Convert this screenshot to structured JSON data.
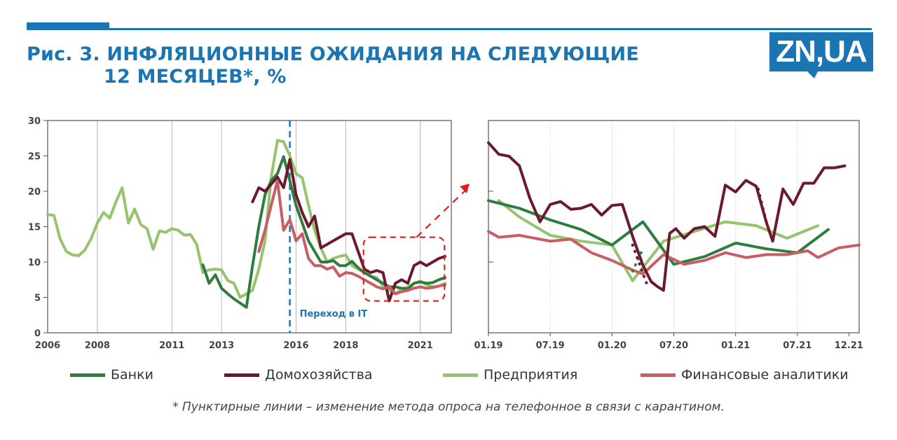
{
  "title_line1": "Рис. 3. ИНФЛЯЦИОННЫЕ ОЖИДАНИЯ НА СЛЕДУЮЩИЕ",
  "title_line2": "12 МЕСЯЦЕВ*, %",
  "logo_text": "ZN,UA",
  "footnote": "* Пунктирные линии – изменение метода опроса на телефонное в связи с карантином.",
  "colors": {
    "brand": "#1b75b3",
    "banks": "#2e7d3f",
    "households": "#6b1a2e",
    "enterprises": "#96c46e",
    "analysts": "#c85d66",
    "zoom_box": "#e01e1e"
  },
  "legend": [
    {
      "name": "Банки",
      "color": "#2e7d3f"
    },
    {
      "name": "Домохозяйства",
      "color": "#6b1a2e"
    },
    {
      "name": "Предприятия",
      "color": "#96c46e"
    },
    {
      "name": "Финансовые аналитики",
      "color": "#c85d66"
    }
  ],
  "chart_data": [
    {
      "type": "line",
      "title": "",
      "x_tick_labels": [
        "2006",
        "2008",
        "2011",
        "2013",
        "2016",
        "2018",
        "2021"
      ],
      "x_ticks": [
        2006.0,
        2008.0,
        2011.0,
        2013.0,
        2016.0,
        2018.0,
        2021.0
      ],
      "xlim": [
        2006.0,
        2022.25
      ],
      "y_tick_labels": [
        "0",
        "5",
        "10",
        "15",
        "20",
        "25",
        "30"
      ],
      "ylim": [
        0,
        30
      ],
      "grid": "vertical",
      "annotation": {
        "label": "Переход в IT",
        "x": 2015.75
      },
      "zoom_region": {
        "x": [
          2019.0,
          2021.92
        ],
        "y": [
          4.5,
          13.5
        ]
      },
      "series": [
        {
          "name": "Банки",
          "x": [
            2012.25,
            2012.5,
            2012.75,
            2013.0,
            2013.25,
            2013.5,
            2013.75,
            2014.0,
            2014.25,
            2014.5,
            2014.75,
            2015.0,
            2015.25,
            2015.5,
            2015.75,
            2016.0,
            2016.25,
            2016.5,
            2016.75,
            2017.0,
            2017.25,
            2017.5,
            2017.75,
            2018.0,
            2018.25,
            2018.5,
            2018.75,
            2019.0,
            2019.25,
            2019.5,
            2019.75,
            2020.0,
            2020.25,
            2020.5,
            2020.75,
            2021.0,
            2021.25,
            2021.5,
            2021.75,
            2022.0
          ],
          "values": [
            9.6,
            7.0,
            8.2,
            6.3,
            5.5,
            4.8,
            4.2,
            3.6,
            9.5,
            15.0,
            19.5,
            21.5,
            22.5,
            24.9,
            21.5,
            18.0,
            15.5,
            13.0,
            11.5,
            10.0,
            10.0,
            10.2,
            9.5,
            9.5,
            10.1,
            9.2,
            8.5,
            8.0,
            7.5,
            7.0,
            6.5,
            6.5,
            6.3,
            6.2,
            7.0,
            7.2,
            7.0,
            7.1,
            7.5,
            7.8
          ]
        },
        {
          "name": "Домохозяйства",
          "x": [
            2014.25,
            2014.5,
            2014.75,
            2015.0,
            2015.25,
            2015.5,
            2015.75,
            2016.0,
            2016.25,
            2016.5,
            2016.75,
            2017.0,
            2017.25,
            2017.5,
            2017.75,
            2018.0,
            2018.25,
            2018.5,
            2018.75,
            2019.0,
            2019.25,
            2019.5,
            2019.75,
            2020.0,
            2020.25,
            2020.5,
            2020.75,
            2021.0,
            2021.25,
            2021.5,
            2021.75,
            2022.0
          ],
          "values": [
            18.5,
            20.5,
            20.0,
            21.0,
            22.0,
            20.5,
            24.5,
            19.5,
            17.0,
            15.0,
            16.5,
            12.0,
            12.5,
            13.0,
            13.5,
            14.0,
            14.0,
            11.5,
            9.0,
            8.5,
            8.8,
            8.5,
            4.5,
            7.0,
            7.5,
            7.0,
            9.5,
            10.0,
            9.5,
            10.0,
            10.5,
            10.8
          ]
        },
        {
          "name": "Предприятия",
          "x": [
            2006.0,
            2006.25,
            2006.5,
            2006.75,
            2007.0,
            2007.25,
            2007.5,
            2007.75,
            2008.0,
            2008.25,
            2008.5,
            2008.75,
            2009.0,
            2009.25,
            2009.5,
            2009.75,
            2010.0,
            2010.25,
            2010.5,
            2010.75,
            2011.0,
            2011.25,
            2011.5,
            2011.75,
            2012.0,
            2012.25,
            2012.5,
            2012.75,
            2013.0,
            2013.25,
            2013.5,
            2013.75,
            2014.0,
            2014.25,
            2014.5,
            2014.75,
            2015.0,
            2015.25,
            2015.5,
            2015.75,
            2016.0,
            2016.25,
            2016.5,
            2016.75,
            2017.0,
            2017.25,
            2017.5,
            2017.75,
            2018.0,
            2018.25,
            2018.5,
            2018.75,
            2019.0,
            2019.25,
            2019.5,
            2019.75,
            2020.0,
            2020.25,
            2020.5,
            2020.75,
            2021.0,
            2021.25,
            2021.5,
            2021.75,
            2022.0
          ],
          "values": [
            16.7,
            16.6,
            13.3,
            11.5,
            11.0,
            10.9,
            11.7,
            13.3,
            15.5,
            17.0,
            16.2,
            18.5,
            20.5,
            15.5,
            17.5,
            15.3,
            14.7,
            11.8,
            14.4,
            14.2,
            14.7,
            14.5,
            13.8,
            13.9,
            12.5,
            8.5,
            8.9,
            9.0,
            8.9,
            7.4,
            7.0,
            5.0,
            5.5,
            6.0,
            9.0,
            13.0,
            22.0,
            27.2,
            27.0,
            25.0,
            22.5,
            21.9,
            18.0,
            14.5,
            12.0,
            10.0,
            10.5,
            10.8,
            11.0,
            9.5,
            9.0,
            8.5,
            8.0,
            7.8,
            6.6,
            6.0,
            5.5,
            6.2,
            6.5,
            7.0,
            7.3,
            6.8,
            6.5,
            6.6,
            7.0
          ]
        },
        {
          "name": "Финансовые аналитики",
          "x": [
            2014.5,
            2014.75,
            2015.0,
            2015.25,
            2015.5,
            2015.75,
            2016.0,
            2016.25,
            2016.5,
            2016.75,
            2017.0,
            2017.25,
            2017.5,
            2017.75,
            2018.0,
            2018.25,
            2018.5,
            2018.75,
            2019.0,
            2019.25,
            2019.5,
            2019.75,
            2020.0,
            2020.25,
            2020.5,
            2020.75,
            2021.0,
            2021.25,
            2021.5,
            2021.75,
            2022.0
          ],
          "values": [
            11.5,
            14.5,
            18.0,
            21.5,
            14.5,
            16.0,
            13.0,
            14.0,
            10.5,
            9.5,
            9.5,
            9.0,
            9.3,
            8.0,
            8.5,
            8.4,
            8.0,
            7.5,
            7.0,
            6.5,
            6.2,
            6.5,
            5.5,
            5.8,
            6.0,
            6.3,
            6.5,
            6.3,
            6.4,
            6.6,
            6.8
          ]
        }
      ]
    },
    {
      "type": "line",
      "title": "",
      "x_tick_labels": [
        "01.19",
        "07.19",
        "01.20",
        "07.20",
        "01.21",
        "07.21",
        "12.21"
      ],
      "x_ticks": [
        0,
        6,
        12,
        18,
        24,
        30,
        35
      ],
      "xlim": [
        0,
        36
      ],
      "ylim": [
        4.5,
        26.5
      ],
      "grid": "vertical",
      "series": [
        {
          "name": "Банки",
          "x": [
            0,
            3,
            6,
            9,
            12,
            15,
            18,
            21,
            24,
            27,
            30,
            33
          ],
          "values": [
            18.2,
            17.4,
            16.2,
            15.2,
            13.6,
            16.0,
            11.6,
            12.4,
            13.8,
            13.2,
            12.8,
            15.2
          ]
        },
        {
          "name": "Домохозяйства",
          "x": [
            0,
            1,
            2,
            3,
            4,
            5,
            6,
            7,
            8,
            9,
            10,
            11,
            12,
            13,
            14,
            15,
            15.8,
            16.4,
            17,
            17.6,
            18.2,
            19,
            20,
            21,
            22,
            23,
            24,
            25,
            26,
            27,
            27.6,
            28.6,
            29.6,
            30.6,
            31.6,
            32.6,
            33.6,
            34.6
          ],
          "values": [
            24.2,
            23.0,
            22.8,
            21.8,
            18.5,
            16.0,
            17.8,
            18.1,
            17.3,
            17.4,
            17.8,
            16.7,
            17.7,
            17.8,
            14.5,
            11.5,
            9.8,
            9.3,
            8.9,
            14.8,
            15.3,
            14.3,
            15.3,
            15.5,
            14.5,
            19.8,
            19.1,
            20.3,
            19.7,
            15.9,
            14.0,
            19.4,
            17.8,
            20.0,
            20.0,
            21.6,
            21.6,
            21.8
          ]
        },
        {
          "name": "Предприятия",
          "x": [
            1,
            3,
            6,
            9,
            12,
            14,
            17,
            20,
            23,
            26,
            29,
            32
          ],
          "values": [
            18.2,
            16.5,
            14.6,
            14.0,
            13.6,
            9.9,
            14.0,
            15.0,
            16.0,
            15.6,
            14.3,
            15.6
          ]
        },
        {
          "name": "Финансовые аналитики",
          "x": [
            0,
            1,
            3,
            6,
            8,
            10,
            12,
            14,
            15,
            17,
            19,
            21,
            23,
            25,
            27,
            29,
            31,
            32,
            34,
            36
          ],
          "values": [
            15.0,
            14.4,
            14.6,
            14.0,
            14.2,
            12.8,
            12.0,
            11.0,
            10.6,
            12.6,
            11.6,
            12.0,
            12.8,
            12.3,
            12.6,
            12.6,
            13.0,
            12.3,
            13.3,
            13.6
          ]
        }
      ],
      "dotted_segments": [
        {
          "name": "Банки",
          "x": [
            14,
            15
          ],
          "values": [
            10.9,
            13.2
          ]
        },
        {
          "name": "Домохозяйства",
          "x": [
            14,
            15.5
          ],
          "values": [
            13.6,
            9.2
          ]
        },
        {
          "name": "Домохозяйства",
          "x": [
            26.2,
            27
          ],
          "values": [
            19.4,
            15.9
          ]
        }
      ]
    }
  ]
}
